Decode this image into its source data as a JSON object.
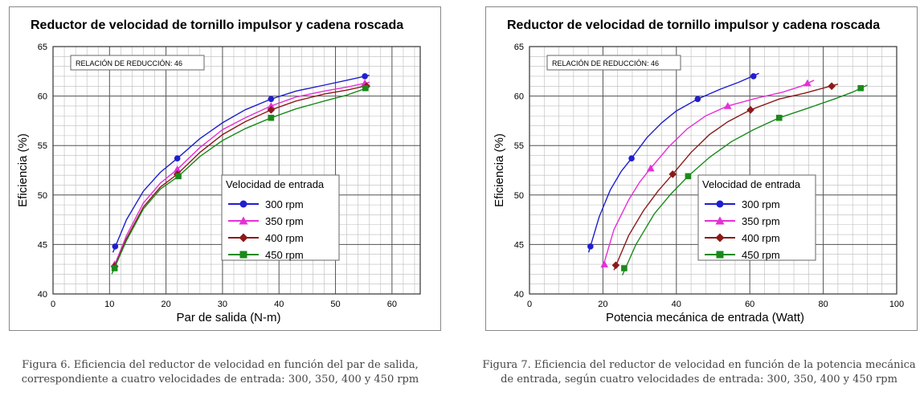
{
  "chart_data": [
    {
      "type": "line",
      "title": "Reductor de velocidad de tornillo impulsor y cadena roscada",
      "annotation": "RELACIÓN DE REDUCCIÓN: 46",
      "xlabel": "Par de salida (N-m)",
      "ylabel": "Eficiencia (%)",
      "xlim": [
        0,
        65
      ],
      "ylim": [
        40,
        65
      ],
      "xticks": [
        "0",
        "10",
        "20",
        "30",
        "40",
        "50",
        "60"
      ],
      "yticks": [
        "40",
        "45",
        "50",
        "55",
        "60",
        "65"
      ],
      "grid": true,
      "legend_title": "Velocidad de entrada",
      "legend_position": "center-right",
      "series": [
        {
          "name": "300 rpm",
          "color": "#1f1fd0",
          "marker": "circle",
          "x": [
            11,
            22,
            38.6,
            55.2
          ],
          "y": [
            44.8,
            53.7,
            59.7,
            62.0
          ],
          "curve": [
            [
              10.6,
              44.2
            ],
            [
              13,
              47.5
            ],
            [
              16,
              50.4
            ],
            [
              19,
              52.3
            ],
            [
              22,
              53.7
            ],
            [
              26,
              55.7
            ],
            [
              30,
              57.3
            ],
            [
              34,
              58.6
            ],
            [
              38.6,
              59.7
            ],
            [
              43,
              60.5
            ],
            [
              48,
              61.1
            ],
            [
              52,
              61.6
            ],
            [
              56,
              62.1
            ]
          ]
        },
        {
          "name": "350 rpm",
          "color": "#e62fd8",
          "marker": "triangle",
          "x": [
            10.9,
            22,
            38.6,
            55.2
          ],
          "y": [
            43.0,
            52.6,
            59.0,
            61.3
          ],
          "curve": [
            [
              10.6,
              42.5
            ],
            [
              13,
              45.9
            ],
            [
              16,
              49.2
            ],
            [
              19,
              51.2
            ],
            [
              22,
              52.6
            ],
            [
              26,
              54.8
            ],
            [
              30,
              56.6
            ],
            [
              34,
              57.8
            ],
            [
              38.6,
              59.0
            ],
            [
              43,
              59.9
            ],
            [
              48,
              60.5
            ],
            [
              52,
              60.9
            ],
            [
              56,
              61.4
            ]
          ]
        },
        {
          "name": "400 rpm",
          "color": "#8b1a1a",
          "marker": "diamond",
          "x": [
            10.9,
            22,
            38.6,
            55.5
          ],
          "y": [
            42.8,
            52.1,
            58.6,
            61.0
          ],
          "curve": [
            [
              10.6,
              42.3
            ],
            [
              13,
              45.6
            ],
            [
              16,
              48.8
            ],
            [
              19,
              50.8
            ],
            [
              22,
              52.1
            ],
            [
              26,
              54.3
            ],
            [
              30,
              56.1
            ],
            [
              34,
              57.4
            ],
            [
              38.6,
              58.6
            ],
            [
              43,
              59.5
            ],
            [
              48,
              60.2
            ],
            [
              52,
              60.6
            ],
            [
              56,
              61.1
            ]
          ]
        },
        {
          "name": "450 rpm",
          "color": "#1a8a1a",
          "marker": "square",
          "x": [
            10.9,
            22.2,
            38.6,
            55.3
          ],
          "y": [
            42.6,
            51.9,
            57.8,
            60.8
          ],
          "curve": [
            [
              10.4,
              42.0
            ],
            [
              13,
              45.4
            ],
            [
              16,
              48.6
            ],
            [
              19,
              50.6
            ],
            [
              22.2,
              51.9
            ],
            [
              26,
              53.9
            ],
            [
              30,
              55.5
            ],
            [
              34,
              56.7
            ],
            [
              38.6,
              57.8
            ],
            [
              43,
              58.7
            ],
            [
              48,
              59.5
            ],
            [
              52,
              60.1
            ],
            [
              56,
              60.9
            ]
          ]
        }
      ],
      "caption": "Figura 6. Eficiencia del reductor de velocidad en función del par de salida, correspondiente a cuatro velocidades de entrada: 300, 350, 400 y 450 rpm"
    },
    {
      "type": "line",
      "title": "Reductor de velocidad de tornillo impulsor y cadena roscada",
      "annotation": "RELACIÓN DE REDUCCIÓN: 46",
      "xlabel": "Potencia mecánica de entrada (Watt)",
      "ylabel": "Eficiencia (%)",
      "xlim": [
        0,
        100
      ],
      "ylim": [
        40,
        65
      ],
      "xticks": [
        "0",
        "20",
        "40",
        "60",
        "80",
        "100"
      ],
      "yticks": [
        "40",
        "45",
        "50",
        "55",
        "60",
        "65"
      ],
      "grid": true,
      "legend_title": "Velocidad de entrada",
      "legend_position": "center-right",
      "series": [
        {
          "name": "300 rpm",
          "color": "#1f1fd0",
          "marker": "circle",
          "x": [
            16.6,
            27.8,
            45.8,
            61.0
          ],
          "y": [
            44.8,
            53.7,
            59.7,
            62.0
          ],
          "curve": [
            [
              16.1,
              44.2
            ],
            [
              19,
              47.8
            ],
            [
              22,
              50.5
            ],
            [
              25,
              52.4
            ],
            [
              27.8,
              53.7
            ],
            [
              32,
              55.8
            ],
            [
              36,
              57.3
            ],
            [
              40,
              58.5
            ],
            [
              45.8,
              59.7
            ],
            [
              52,
              60.7
            ],
            [
              57,
              61.4
            ],
            [
              62.5,
              62.3
            ]
          ]
        },
        {
          "name": "350 rpm",
          "color": "#e62fd8",
          "marker": "triangle",
          "x": [
            20.4,
            33.0,
            54.0,
            75.7
          ],
          "y": [
            43.0,
            52.7,
            59.0,
            61.3
          ],
          "curve": [
            [
              19.9,
              42.6
            ],
            [
              23,
              46.5
            ],
            [
              27,
              49.5
            ],
            [
              30,
              51.3
            ],
            [
              33,
              52.7
            ],
            [
              38,
              54.9
            ],
            [
              43,
              56.7
            ],
            [
              48,
              58.0
            ],
            [
              54,
              59.0
            ],
            [
              62,
              59.8
            ],
            [
              69,
              60.4
            ],
            [
              74,
              61.0
            ],
            [
              77.5,
              61.6
            ]
          ]
        },
        {
          "name": "400 rpm",
          "color": "#8b1a1a",
          "marker": "diamond",
          "x": [
            23.5,
            39.0,
            60.2,
            82.3
          ],
          "y": [
            42.9,
            52.1,
            58.6,
            61.0
          ],
          "curve": [
            [
              23.0,
              42.4
            ],
            [
              27,
              45.9
            ],
            [
              31,
              48.4
            ],
            [
              35,
              50.4
            ],
            [
              39,
              52.1
            ],
            [
              44,
              54.3
            ],
            [
              49,
              56.1
            ],
            [
              54,
              57.4
            ],
            [
              60.2,
              58.6
            ],
            [
              68,
              59.7
            ],
            [
              75,
              60.3
            ],
            [
              80,
              60.8
            ],
            [
              84,
              61.2
            ]
          ]
        },
        {
          "name": "450 rpm",
          "color": "#1a8a1a",
          "marker": "square",
          "x": [
            25.8,
            43.2,
            68.0,
            90.2
          ],
          "y": [
            42.6,
            51.9,
            57.8,
            60.8
          ],
          "curve": [
            [
              25.3,
              41.9
            ],
            [
              29,
              45.0
            ],
            [
              34,
              48.1
            ],
            [
              38.5,
              50.1
            ],
            [
              43.2,
              51.9
            ],
            [
              49,
              53.8
            ],
            [
              55,
              55.4
            ],
            [
              61,
              56.6
            ],
            [
              68,
              57.8
            ],
            [
              76,
              58.8
            ],
            [
              83,
              59.7
            ],
            [
              88,
              60.4
            ],
            [
              92,
              61.1
            ]
          ]
        }
      ],
      "caption": "Figura 7. Eficiencia del reductor de velocidad en función de la potencia mecánica de entrada, según cuatro velocidades de entrada: 300, 350, 400 y 450 rpm"
    }
  ]
}
